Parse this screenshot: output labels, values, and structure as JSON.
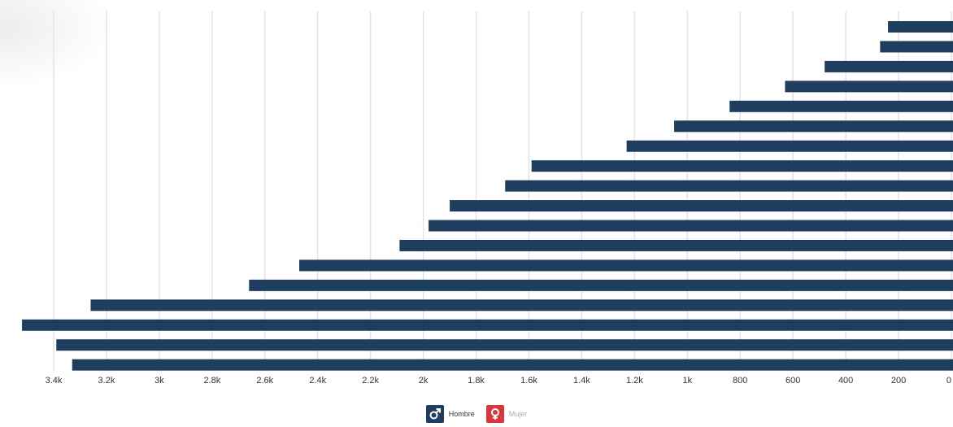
{
  "chart_data": {
    "type": "bar",
    "orientation": "horizontal",
    "x_reversed": true,
    "xlim": [
      0,
      3500
    ],
    "x_ticks": [
      "3.4k",
      "3.2k",
      "3k",
      "2.8k",
      "2.6k",
      "2.4k",
      "2.2k",
      "2k",
      "1.8k",
      "1.6k",
      "1.4k",
      "1.2k",
      "1k",
      "800",
      "600",
      "400",
      "200",
      "0"
    ],
    "x_tick_values": [
      3400,
      3200,
      3000,
      2800,
      2600,
      2400,
      2200,
      2000,
      1800,
      1600,
      1400,
      1200,
      1000,
      800,
      600,
      400,
      200,
      0
    ],
    "grid": true,
    "series": [
      {
        "name": "Hombre",
        "color": "#1f3d5f",
        "values": [
          240,
          270,
          480,
          630,
          840,
          1050,
          1230,
          1590,
          1690,
          1900,
          1980,
          2090,
          2470,
          2660,
          3260,
          3520,
          3390,
          3330
        ]
      }
    ],
    "legend_position": "bottom-center"
  },
  "legend": {
    "items": [
      {
        "label": "Hombre",
        "icon": "male-icon",
        "color": "#1f3d5f",
        "state": "on"
      },
      {
        "label": "Mujer",
        "icon": "female-icon",
        "color": "#d9373c",
        "state": "off"
      }
    ]
  }
}
